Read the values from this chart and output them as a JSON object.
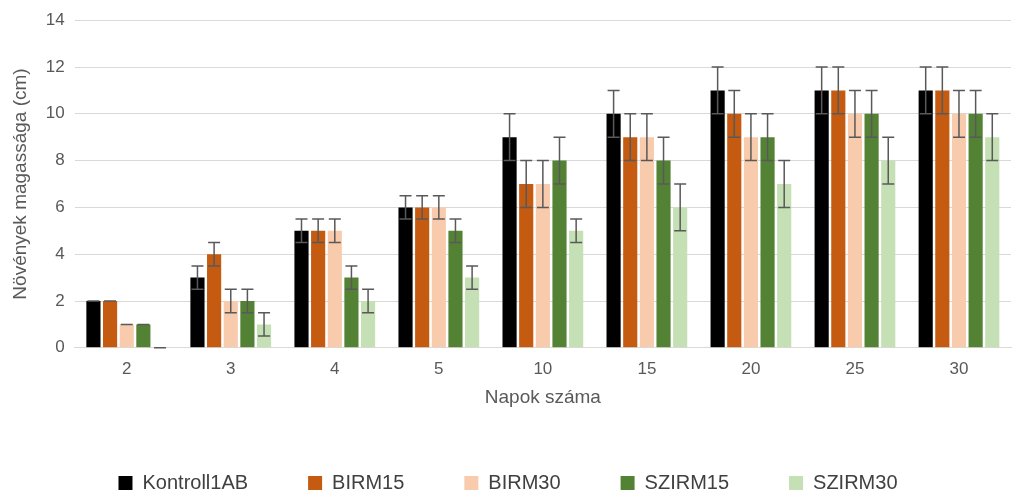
{
  "chart_data": {
    "type": "bar",
    "xlabel": "Napok száma",
    "ylabel": "Növények magassága (cm)",
    "categories": [
      "2",
      "3",
      "4",
      "5",
      "10",
      "15",
      "20",
      "25",
      "30"
    ],
    "series": [
      {
        "name": "Kontroll1AB",
        "color": "#000000",
        "values": [
          2,
          3,
          5,
          6,
          9,
          10,
          11,
          11,
          11
        ],
        "errors": [
          0,
          0.5,
          0.5,
          0.5,
          1,
          1,
          1,
          1,
          1
        ]
      },
      {
        "name": "BIRM15",
        "color": "#c55a11",
        "values": [
          2,
          4,
          5,
          6,
          7,
          9,
          10,
          11,
          11
        ],
        "errors": [
          0,
          0.5,
          0.5,
          0.5,
          1,
          1,
          1,
          1,
          1
        ]
      },
      {
        "name": "BIRM30",
        "color": "#f8cbad",
        "values": [
          1,
          2,
          5,
          6,
          7,
          9,
          9,
          10,
          10
        ],
        "errors": [
          0,
          0.5,
          0.5,
          0.5,
          1,
          1,
          1,
          1,
          1
        ]
      },
      {
        "name": "SZIRM15",
        "color": "#548235",
        "values": [
          1,
          2,
          3,
          5,
          8,
          8,
          9,
          10,
          10
        ],
        "errors": [
          0,
          0.5,
          0.5,
          0.5,
          1,
          1,
          1,
          1,
          1
        ]
      },
      {
        "name": "SZIRM30",
        "color": "#c5e0b4",
        "values": [
          0,
          1,
          2,
          3,
          5,
          6,
          7,
          8,
          9
        ],
        "errors": [
          0,
          0.5,
          0.5,
          0.5,
          0.5,
          1,
          1,
          1,
          1
        ]
      }
    ],
    "ylim": [
      0,
      14
    ],
    "yticks": [
      0,
      2,
      4,
      6,
      8,
      10,
      12,
      14
    ],
    "grid": "y",
    "legend": "bottom"
  }
}
